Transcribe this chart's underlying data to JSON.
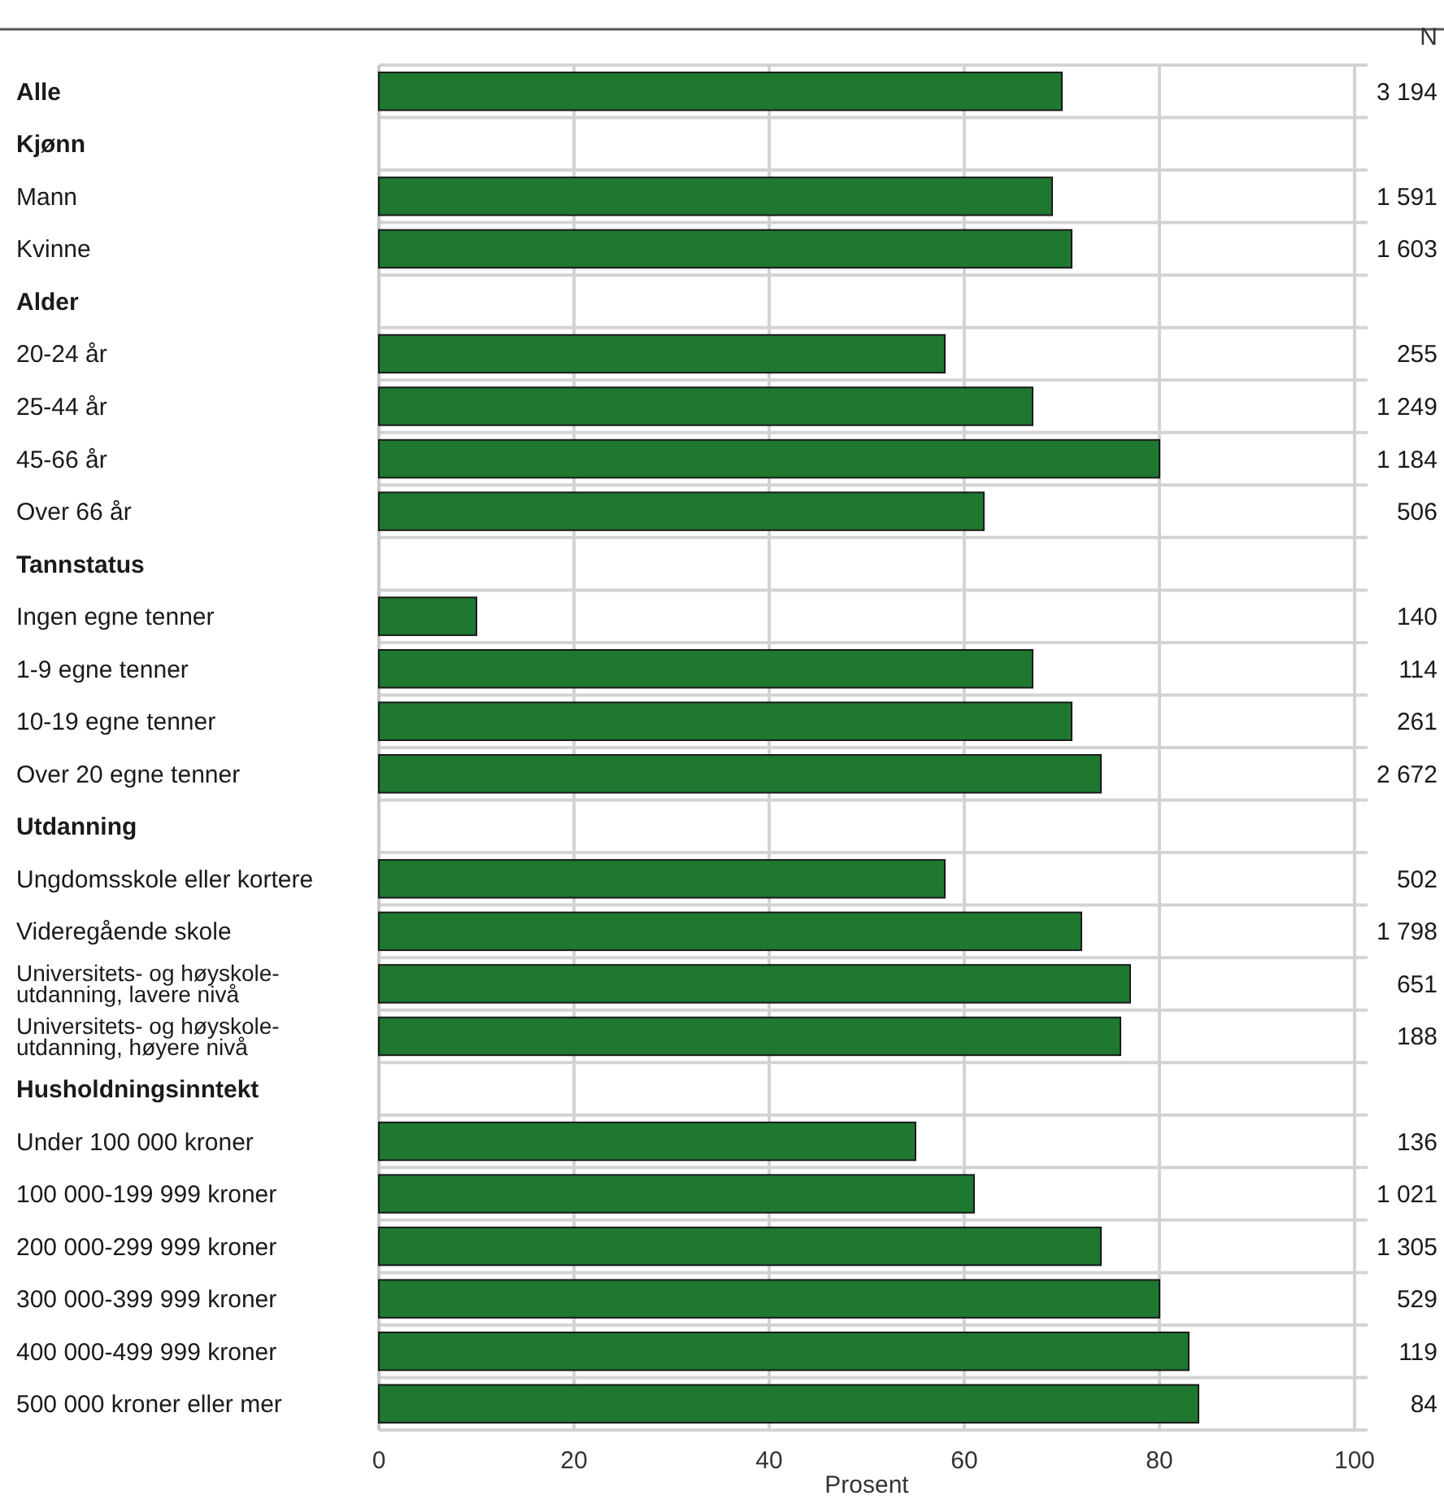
{
  "chart_data": {
    "type": "bar",
    "orientation": "horizontal",
    "xlabel": "Prosent",
    "categories": [
      "Alle",
      "Kjønn",
      "Mann",
      "Kvinne",
      "Alder",
      "20-24 år",
      "25-44 år",
      "45-66 år",
      "Over 66 år",
      "Tannstatus",
      "Ingen egne tenner",
      "1-9 egne tenner",
      "10-19 egne tenner",
      "Over 20 egne tenner",
      "Utdanning",
      "Ungdomsskole eller kortere",
      "Videregående skole",
      "Universitets- og høyskole-\nutdanning, lavere nivå",
      "Universitets- og høyskole-\nutdanning, høyere nivå",
      "Husholdningsinntekt",
      "Under 100 000 kroner",
      "100 000-199 999 kroner",
      "200 000-299 999 kroner",
      "300 000-399 999 kroner",
      "400 000-499 999 kroner",
      "500 000 kroner eller mer"
    ],
    "values": [
      70,
      null,
      69,
      71,
      null,
      58,
      67,
      80,
      62,
      null,
      10,
      67,
      71,
      74,
      null,
      58,
      72,
      77,
      76,
      null,
      55,
      61,
      74,
      80,
      83,
      84
    ],
    "color": "#1e7830",
    "xlim": [
      0,
      100
    ],
    "xticks": [
      0,
      20,
      40,
      60,
      80,
      100
    ],
    "grid": true,
    "annotations": [
      "N",
      "3 194",
      "1 591",
      "1 603",
      "255",
      "1 249",
      "1 184",
      "506",
      "140",
      "114",
      "261",
      "2 672",
      "502",
      "1 798",
      "651",
      "188",
      "136",
      "1 021",
      "1 305",
      "529",
      "119",
      "84"
    ]
  }
}
